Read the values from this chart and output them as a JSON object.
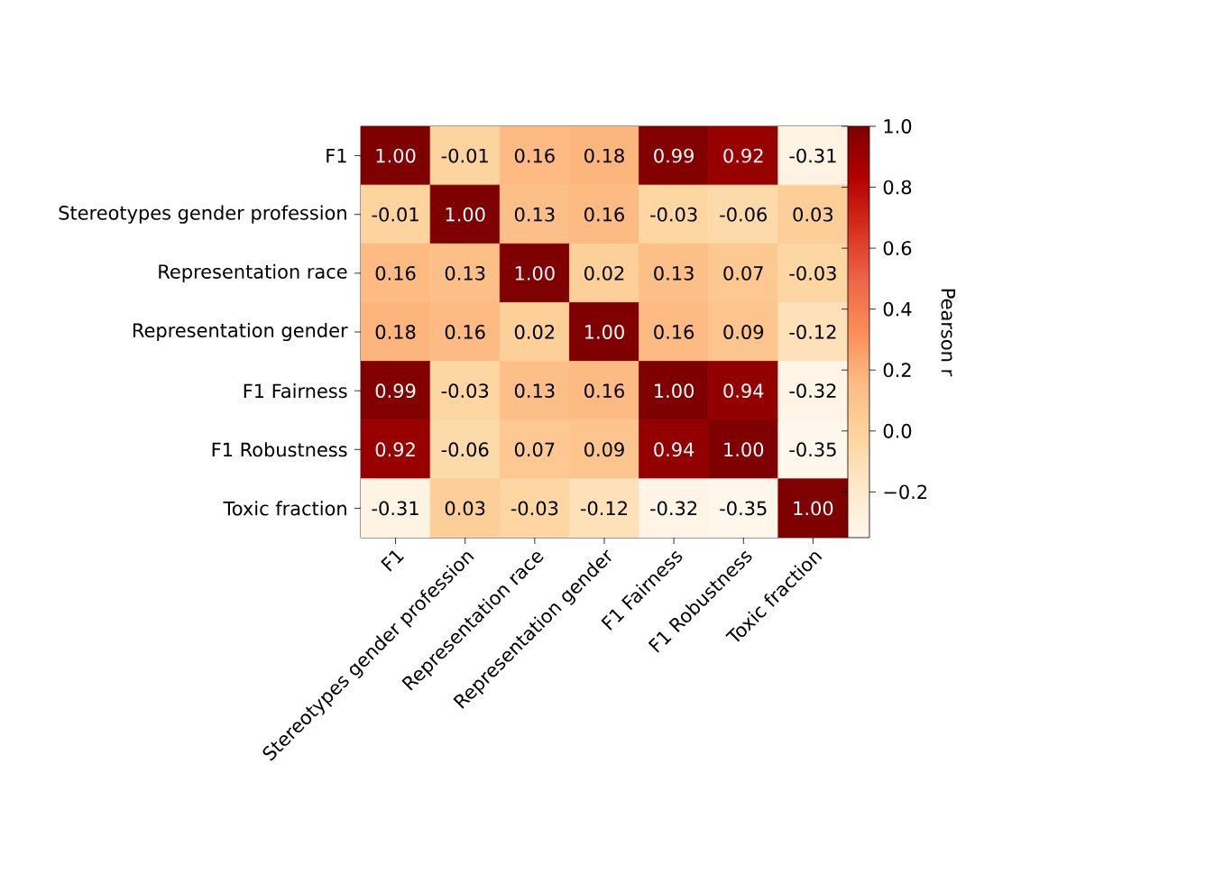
{
  "chart_data": {
    "type": "heatmap",
    "clabel": "Pearson r",
    "categories": [
      "F1",
      "Stereotypes gender profession",
      "Representation race",
      "Representation gender",
      "F1 Fairness",
      "F1 Robustness",
      "Toxic fraction"
    ],
    "y_categories": [
      "F1",
      "Stereotypes gender profession",
      "Representation race",
      "Representation gender",
      "F1 Fairness",
      "F1 Robustness",
      "Toxic fraction"
    ],
    "cells": [
      [
        1.0,
        -0.01,
        0.16,
        0.18,
        0.99,
        0.92,
        -0.31
      ],
      [
        -0.01,
        1.0,
        0.13,
        0.16,
        -0.03,
        -0.06,
        0.03
      ],
      [
        0.16,
        0.13,
        1.0,
        0.02,
        0.13,
        0.07,
        -0.03
      ],
      [
        0.18,
        0.16,
        0.02,
        1.0,
        0.16,
        0.09,
        -0.12
      ],
      [
        0.99,
        -0.03,
        0.13,
        0.16,
        1.0,
        0.94,
        -0.32
      ],
      [
        0.92,
        -0.06,
        0.07,
        0.09,
        0.94,
        1.0,
        -0.35
      ],
      [
        -0.31,
        0.03,
        -0.03,
        -0.12,
        -0.32,
        -0.35,
        1.0
      ]
    ],
    "cell_labels": [
      [
        "1.00",
        "-0.01",
        "0.16",
        "0.18",
        "0.99",
        "0.92",
        "-0.31"
      ],
      [
        "-0.01",
        "1.00",
        "0.13",
        "0.16",
        "-0.03",
        "-0.06",
        "0.03"
      ],
      [
        "0.16",
        "0.13",
        "1.00",
        "0.02",
        "0.13",
        "0.07",
        "-0.03"
      ],
      [
        "0.18",
        "0.16",
        "0.02",
        "1.00",
        "0.16",
        "0.09",
        "-0.12"
      ],
      [
        "0.99",
        "-0.03",
        "0.13",
        "0.16",
        "1.00",
        "0.94",
        "-0.32"
      ],
      [
        "0.92",
        "-0.06",
        "0.07",
        "0.09",
        "0.94",
        "1.00",
        "-0.35"
      ],
      [
        "-0.31",
        "0.03",
        "-0.03",
        "-0.12",
        "-0.32",
        "-0.35",
        "1.00"
      ]
    ],
    "clim": [
      -0.35,
      1.0
    ],
    "cticks": [
      {
        "value": -0.2,
        "label": "−0.2"
      },
      {
        "value": 0.0,
        "label": "0.0"
      },
      {
        "value": 0.2,
        "label": "0.2"
      },
      {
        "value": 0.4,
        "label": "0.4"
      },
      {
        "value": 0.6,
        "label": "0.6"
      },
      {
        "value": 0.8,
        "label": "0.8"
      },
      {
        "value": 1.0,
        "label": "1.0"
      }
    ]
  }
}
